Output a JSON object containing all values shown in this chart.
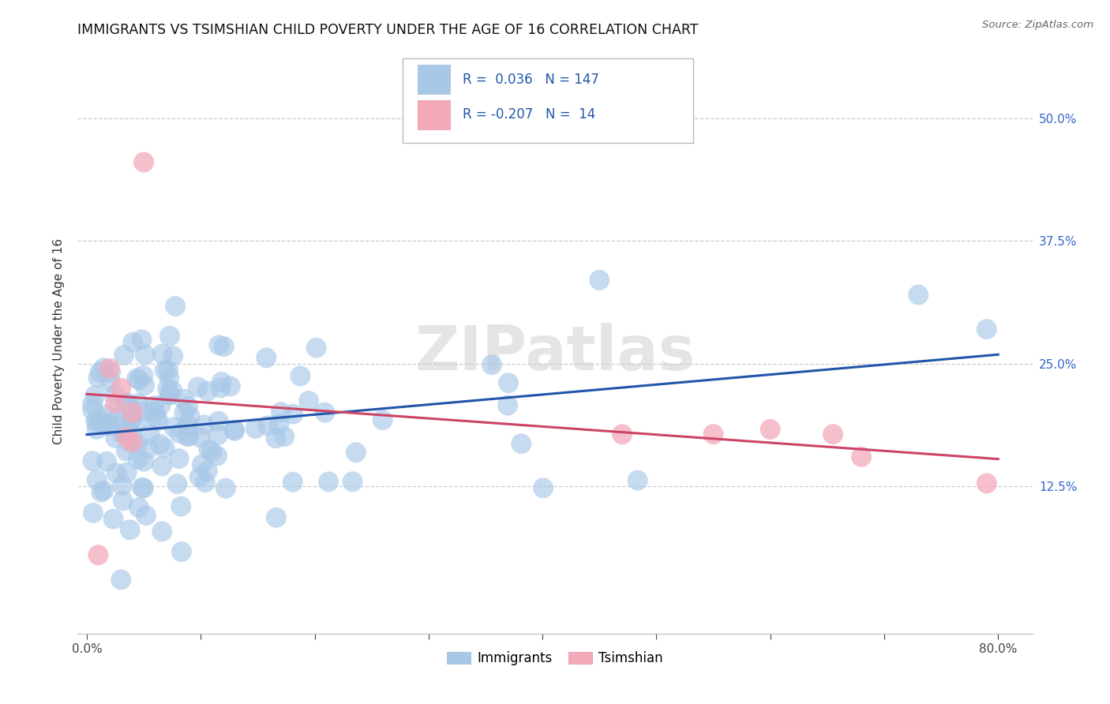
{
  "title": "IMMIGRANTS VS TSIMSHIAN CHILD POVERTY UNDER THE AGE OF 16 CORRELATION CHART",
  "source": "Source: ZipAtlas.com",
  "ylabel": "Child Poverty Under the Age of 16",
  "blue_R": "0.036",
  "blue_N": "147",
  "pink_R": "-0.207",
  "pink_N": "14",
  "blue_color": "#a8c8e8",
  "blue_line_color": "#2255aa",
  "pink_color": "#f4aabb",
  "pink_line_color": "#cc4466",
  "legend_label_blue": "Immigrants",
  "legend_label_pink": "Tsimshian",
  "watermark": "ZIPatlas",
  "title_fontsize": 12.5,
  "axis_label_fontsize": 11,
  "tick_fontsize": 11,
  "ytick_color": "#3366cc",
  "blue_scatter_seed": 123,
  "pink_x": [
    0.01,
    0.02,
    0.025,
    0.03,
    0.035,
    0.04,
    0.04,
    0.05,
    0.47,
    0.55,
    0.6,
    0.655,
    0.68,
    0.79
  ],
  "pink_y": [
    0.055,
    0.245,
    0.21,
    0.225,
    0.175,
    0.2,
    0.17,
    0.455,
    0.178,
    0.178,
    0.183,
    0.178,
    0.155,
    0.128
  ]
}
